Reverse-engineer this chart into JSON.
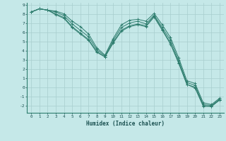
{
  "background_color": "#c5e8e8",
  "grid_color": "#a8cece",
  "line_color": "#2e7d6e",
  "marker": "+",
  "xlabel": "Humidex (Indice chaleur)",
  "xlim": [
    -0.5,
    23.5
  ],
  "ylim": [
    -2.8,
    9.2
  ],
  "xticks": [
    0,
    1,
    2,
    3,
    4,
    5,
    6,
    7,
    8,
    9,
    10,
    11,
    12,
    13,
    14,
    15,
    16,
    17,
    18,
    19,
    20,
    21,
    22,
    23
  ],
  "yticks": [
    -2,
    -1,
    0,
    1,
    2,
    3,
    4,
    5,
    6,
    7,
    8,
    9
  ],
  "series": [
    [
      8.2,
      8.55,
      8.4,
      8.3,
      8.0,
      7.2,
      6.6,
      5.8,
      4.3,
      3.5,
      5.3,
      6.8,
      7.3,
      7.4,
      7.2,
      8.05,
      6.8,
      5.4,
      3.2,
      0.7,
      0.4,
      -1.7,
      -1.9,
      -1.2
    ],
    [
      8.2,
      8.55,
      8.4,
      8.2,
      7.8,
      6.9,
      6.2,
      5.5,
      4.1,
      3.4,
      5.1,
      6.5,
      7.0,
      7.2,
      6.9,
      7.85,
      6.5,
      5.1,
      2.9,
      0.5,
      0.2,
      -1.9,
      -2.0,
      -1.3
    ],
    [
      8.2,
      8.55,
      8.4,
      8.0,
      7.6,
      6.6,
      5.9,
      5.2,
      3.9,
      3.3,
      4.9,
      6.2,
      6.7,
      6.9,
      6.7,
      7.75,
      6.3,
      4.8,
      2.7,
      0.3,
      0.0,
      -2.0,
      -2.1,
      -1.4
    ],
    [
      8.2,
      8.55,
      8.4,
      7.9,
      7.5,
      6.5,
      5.8,
      5.1,
      3.8,
      3.3,
      4.8,
      6.1,
      6.6,
      6.8,
      6.6,
      7.65,
      6.2,
      4.7,
      2.6,
      0.3,
      -0.1,
      -2.1,
      -2.1,
      -1.4
    ]
  ]
}
